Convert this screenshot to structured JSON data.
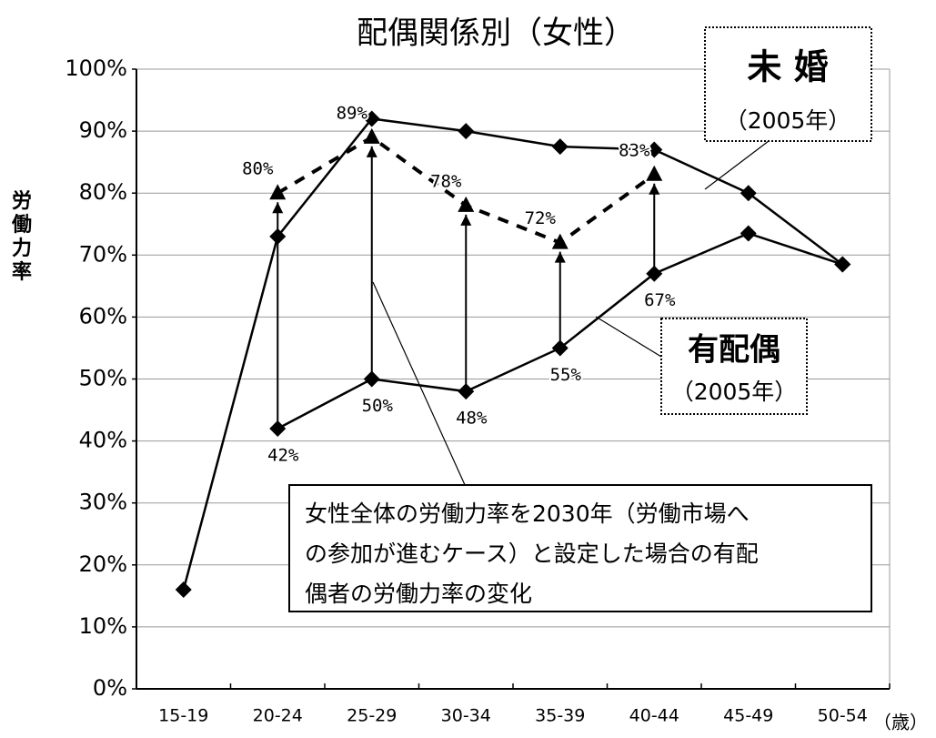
{
  "chart_data": {
    "type": "line",
    "title": "配偶関係別（女性）",
    "y_label": "労働力率",
    "x_unit": "（歳）",
    "categories": [
      "15-19",
      "20-24",
      "25-29",
      "30-34",
      "35-39",
      "40-44",
      "45-49",
      "50-54"
    ],
    "ylim": [
      0,
      100
    ],
    "yticks": [
      {
        "value": 0,
        "label": "0%"
      },
      {
        "value": 10,
        "label": "10%"
      },
      {
        "value": 20,
        "label": "20%"
      },
      {
        "value": 30,
        "label": "30%"
      },
      {
        "value": 40,
        "label": "40%"
      },
      {
        "value": 50,
        "label": "50%"
      },
      {
        "value": 60,
        "label": "60%"
      },
      {
        "value": 70,
        "label": "70%"
      },
      {
        "value": 80,
        "label": "80%"
      },
      {
        "value": 90,
        "label": "90%"
      },
      {
        "value": 100,
        "label": "100%"
      }
    ],
    "grid": true,
    "series": [
      {
        "name": "未 婚",
        "note": "（2005年）",
        "color": "#000000",
        "marker": "diamond",
        "dashed": false,
        "values": [
          16,
          73,
          92,
          90,
          87.5,
          87,
          80,
          68.5
        ]
      },
      {
        "name": "有配偶",
        "note": "（2005年）",
        "color": "#000000",
        "marker": "diamond",
        "dashed": false,
        "values": [
          null,
          42,
          50,
          48,
          55,
          67,
          73.5,
          68.5
        ],
        "value_labels": [
          null,
          "42%",
          "50%",
          "48%",
          "55%",
          "67%",
          null,
          null
        ]
      },
      {
        "color": "#000000",
        "marker": "triangle",
        "dashed": true,
        "values": [
          null,
          80,
          89,
          78,
          72,
          83,
          null,
          null
        ],
        "value_labels": [
          null,
          "80%",
          "89%",
          "78%",
          "72%",
          "83%",
          null,
          null
        ]
      }
    ],
    "annotation": {
      "lines": [
        "女性全体の労働力率を2030年（労働市場へ",
        "の参加が進むケース）と設定した場合の有配",
        "偶者の労働力率の変化"
      ]
    }
  }
}
